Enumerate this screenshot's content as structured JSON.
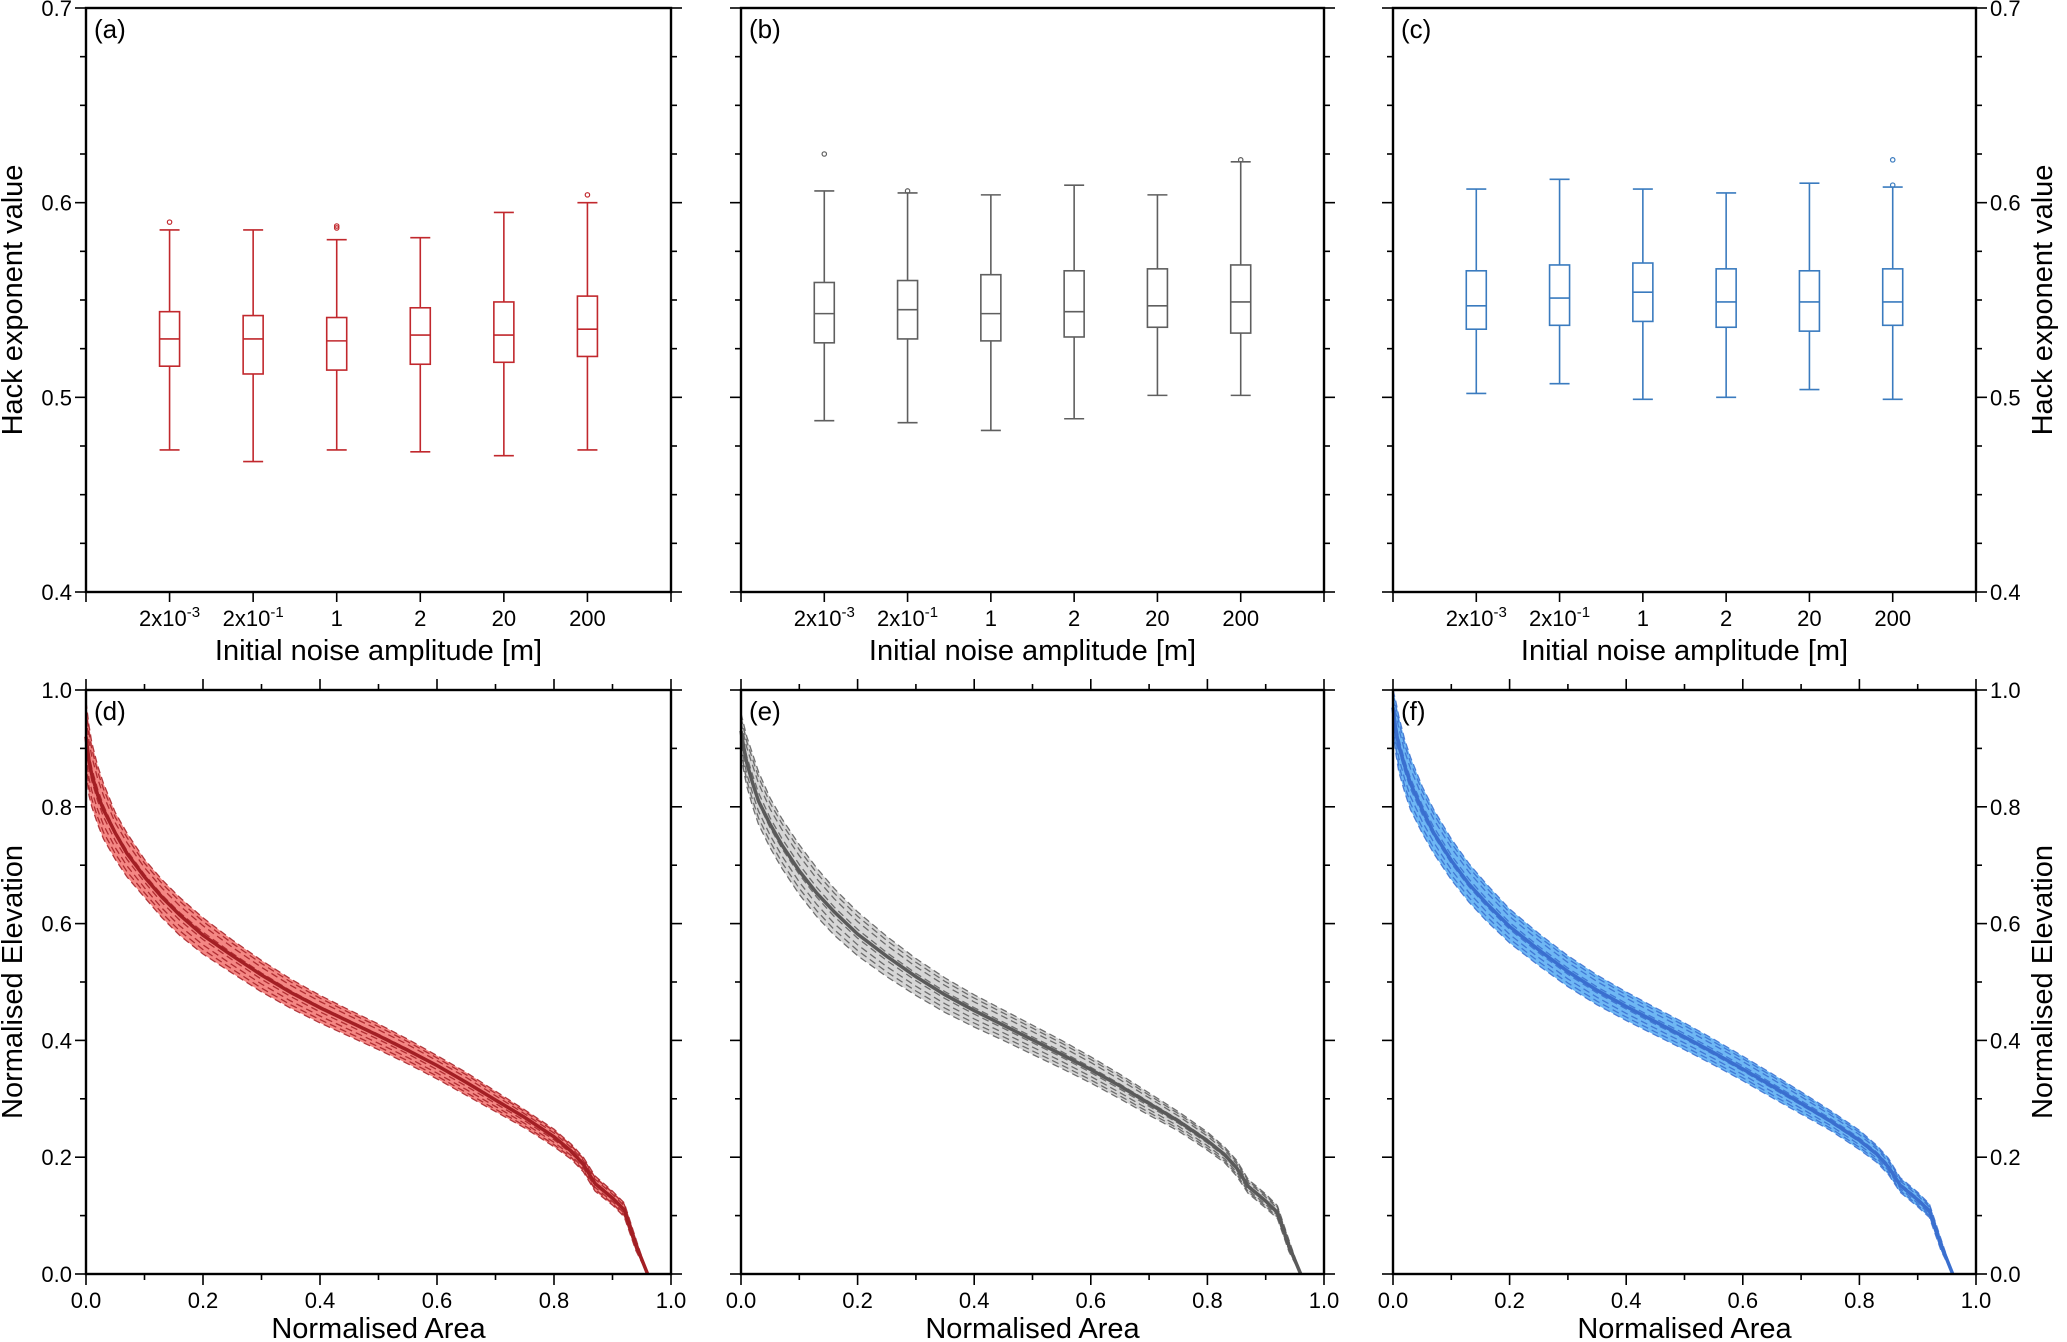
{
  "chart_data": [
    {
      "panel": "(a)",
      "type": "box",
      "color": "#c1282d",
      "xlabel": "Initial noise amplitude [m]",
      "ylabel": "Hack exponent value",
      "ylim": [
        0.4,
        0.7
      ],
      "yticks": [
        "0.4",
        "0.5",
        "0.6",
        "0.7"
      ],
      "categories": [
        {
          "base": "2x10",
          "sup": "-3"
        },
        {
          "base": "2x10",
          "sup": "-1"
        },
        {
          "base": "1",
          "sup": ""
        },
        {
          "base": "2",
          "sup": ""
        },
        {
          "base": "20",
          "sup": ""
        },
        {
          "base": "200",
          "sup": ""
        }
      ],
      "boxes": [
        {
          "whisker_low": 0.473,
          "q1": 0.516,
          "median": 0.53,
          "q3": 0.544,
          "whisker_high": 0.586,
          "outliers": [
            0.59
          ]
        },
        {
          "whisker_low": 0.467,
          "q1": 0.512,
          "median": 0.53,
          "q3": 0.542,
          "whisker_high": 0.586,
          "outliers": []
        },
        {
          "whisker_low": 0.473,
          "q1": 0.514,
          "median": 0.529,
          "q3": 0.541,
          "whisker_high": 0.581,
          "outliers": [
            0.587,
            0.588
          ]
        },
        {
          "whisker_low": 0.472,
          "q1": 0.517,
          "median": 0.532,
          "q3": 0.546,
          "whisker_high": 0.582,
          "outliers": []
        },
        {
          "whisker_low": 0.47,
          "q1": 0.518,
          "median": 0.532,
          "q3": 0.549,
          "whisker_high": 0.595,
          "outliers": []
        },
        {
          "whisker_low": 0.473,
          "q1": 0.521,
          "median": 0.535,
          "q3": 0.552,
          "whisker_high": 0.6,
          "outliers": [
            0.604
          ]
        }
      ]
    },
    {
      "panel": "(b)",
      "type": "box",
      "color": "#5f5f5f",
      "xlabel": "Initial noise amplitude [m]",
      "ylabel": "",
      "ylim": [
        0.4,
        0.7
      ],
      "categories": [
        {
          "base": "2x10",
          "sup": "-3"
        },
        {
          "base": "2x10",
          "sup": "-1"
        },
        {
          "base": "1",
          "sup": ""
        },
        {
          "base": "2",
          "sup": ""
        },
        {
          "base": "20",
          "sup": ""
        },
        {
          "base": "200",
          "sup": ""
        }
      ],
      "boxes": [
        {
          "whisker_low": 0.488,
          "q1": 0.528,
          "median": 0.543,
          "q3": 0.559,
          "whisker_high": 0.606,
          "outliers": [
            0.625
          ]
        },
        {
          "whisker_low": 0.487,
          "q1": 0.53,
          "median": 0.545,
          "q3": 0.56,
          "whisker_high": 0.605,
          "outliers": [
            0.606
          ]
        },
        {
          "whisker_low": 0.483,
          "q1": 0.529,
          "median": 0.543,
          "q3": 0.563,
          "whisker_high": 0.604,
          "outliers": []
        },
        {
          "whisker_low": 0.489,
          "q1": 0.531,
          "median": 0.544,
          "q3": 0.565,
          "whisker_high": 0.609,
          "outliers": []
        },
        {
          "whisker_low": 0.501,
          "q1": 0.536,
          "median": 0.547,
          "q3": 0.566,
          "whisker_high": 0.604,
          "outliers": []
        },
        {
          "whisker_low": 0.501,
          "q1": 0.533,
          "median": 0.549,
          "q3": 0.568,
          "whisker_high": 0.621,
          "outliers": [
            0.622
          ]
        }
      ]
    },
    {
      "panel": "(c)",
      "type": "box",
      "color": "#3a7bbf",
      "xlabel": "Initial noise amplitude [m]",
      "ylabel": "Hack exponent value",
      "ylim": [
        0.4,
        0.7
      ],
      "yticks": [
        "0.4",
        "0.5",
        "0.6",
        "0.7"
      ],
      "categories": [
        {
          "base": "2x10",
          "sup": "-3"
        },
        {
          "base": "2x10",
          "sup": "-1"
        },
        {
          "base": "1",
          "sup": ""
        },
        {
          "base": "2",
          "sup": ""
        },
        {
          "base": "20",
          "sup": ""
        },
        {
          "base": "200",
          "sup": ""
        }
      ],
      "boxes": [
        {
          "whisker_low": 0.502,
          "q1": 0.535,
          "median": 0.547,
          "q3": 0.565,
          "whisker_high": 0.607,
          "outliers": []
        },
        {
          "whisker_low": 0.507,
          "q1": 0.537,
          "median": 0.551,
          "q3": 0.568,
          "whisker_high": 0.612,
          "outliers": []
        },
        {
          "whisker_low": 0.499,
          "q1": 0.539,
          "median": 0.554,
          "q3": 0.569,
          "whisker_high": 0.607,
          "outliers": []
        },
        {
          "whisker_low": 0.5,
          "q1": 0.536,
          "median": 0.549,
          "q3": 0.566,
          "whisker_high": 0.605,
          "outliers": []
        },
        {
          "whisker_low": 0.504,
          "q1": 0.534,
          "median": 0.549,
          "q3": 0.565,
          "whisker_high": 0.61,
          "outliers": []
        },
        {
          "whisker_low": 0.499,
          "q1": 0.537,
          "median": 0.549,
          "q3": 0.566,
          "whisker_high": 0.608,
          "outliers": [
            0.609,
            0.622
          ]
        }
      ]
    },
    {
      "panel": "(d)",
      "type": "line",
      "line_color": "#a31f24",
      "fill_color": "#f2726f",
      "xlabel": "Normalised Area",
      "ylabel": "Normalised Elevation",
      "xlim": [
        0,
        1
      ],
      "ylim": [
        0,
        1
      ],
      "xticks": [
        "0.0",
        "0.2",
        "0.4",
        "0.6",
        "0.8",
        "1.0"
      ],
      "yticks": [
        "0.0",
        "0.2",
        "0.4",
        "0.6",
        "0.8",
        "1.0"
      ],
      "x": [
        0,
        0.005,
        0.01,
        0.02,
        0.03,
        0.05,
        0.07,
        0.1,
        0.13,
        0.16,
        0.2,
        0.25,
        0.3,
        0.35,
        0.4,
        0.45,
        0.5,
        0.55,
        0.6,
        0.65,
        0.7,
        0.75,
        0.8,
        0.83,
        0.85,
        0.87,
        0.9,
        0.92,
        0.94,
        0.96
      ],
      "median": [
        0.92,
        0.88,
        0.855,
        0.82,
        0.795,
        0.755,
        0.72,
        0.68,
        0.645,
        0.615,
        0.58,
        0.545,
        0.512,
        0.482,
        0.456,
        0.432,
        0.408,
        0.383,
        0.357,
        0.328,
        0.298,
        0.268,
        0.235,
        0.21,
        0.188,
        0.155,
        0.13,
        0.11,
        0.05,
        0.0
      ],
      "upper": [
        0.98,
        0.94,
        0.91,
        0.87,
        0.84,
        0.79,
        0.755,
        0.71,
        0.675,
        0.645,
        0.61,
        0.572,
        0.537,
        0.505,
        0.477,
        0.452,
        0.428,
        0.402,
        0.374,
        0.345,
        0.313,
        0.281,
        0.248,
        0.222,
        0.2,
        0.168,
        0.142,
        0.122,
        0.06,
        0.0
      ],
      "lower": [
        0.86,
        0.82,
        0.8,
        0.77,
        0.745,
        0.71,
        0.68,
        0.645,
        0.61,
        0.58,
        0.548,
        0.515,
        0.483,
        0.455,
        0.43,
        0.407,
        0.384,
        0.36,
        0.334,
        0.306,
        0.278,
        0.25,
        0.218,
        0.196,
        0.175,
        0.142,
        0.118,
        0.098,
        0.04,
        0.0
      ]
    },
    {
      "panel": "(e)",
      "type": "line",
      "line_color": "#5a5a5a",
      "fill_color": "#cfcfcf",
      "xlabel": "Normalised Area",
      "ylabel": "",
      "xlim": [
        0,
        1
      ],
      "ylim": [
        0,
        1
      ],
      "xticks": [
        "0.0",
        "0.2",
        "0.4",
        "0.6",
        "0.8",
        "1.0"
      ],
      "x": [
        0,
        0.005,
        0.01,
        0.02,
        0.03,
        0.05,
        0.07,
        0.1,
        0.13,
        0.16,
        0.2,
        0.25,
        0.3,
        0.35,
        0.4,
        0.45,
        0.5,
        0.55,
        0.6,
        0.65,
        0.7,
        0.75,
        0.8,
        0.83,
        0.85,
        0.87,
        0.9,
        0.92,
        0.94,
        0.96
      ],
      "median": [
        0.93,
        0.9,
        0.875,
        0.84,
        0.81,
        0.77,
        0.735,
        0.69,
        0.652,
        0.62,
        0.582,
        0.544,
        0.509,
        0.478,
        0.451,
        0.426,
        0.401,
        0.376,
        0.35,
        0.322,
        0.292,
        0.262,
        0.228,
        0.204,
        0.182,
        0.15,
        0.125,
        0.105,
        0.048,
        0.0
      ],
      "upper": [
        0.96,
        0.94,
        0.92,
        0.89,
        0.86,
        0.815,
        0.78,
        0.735,
        0.695,
        0.66,
        0.62,
        0.578,
        0.54,
        0.507,
        0.478,
        0.452,
        0.426,
        0.4,
        0.372,
        0.342,
        0.31,
        0.278,
        0.243,
        0.217,
        0.195,
        0.162,
        0.137,
        0.117,
        0.058,
        0.0
      ],
      "lower": [
        0.89,
        0.86,
        0.835,
        0.8,
        0.77,
        0.73,
        0.695,
        0.65,
        0.612,
        0.58,
        0.545,
        0.509,
        0.477,
        0.448,
        0.423,
        0.4,
        0.376,
        0.352,
        0.327,
        0.3,
        0.272,
        0.245,
        0.212,
        0.19,
        0.168,
        0.138,
        0.113,
        0.095,
        0.038,
        0.0
      ]
    },
    {
      "panel": "(f)",
      "type": "line",
      "line_color": "#3a6fcf",
      "fill_color": "#55aaf2",
      "xlabel": "Normalised Area",
      "ylabel": "Normalised Elevation",
      "xlim": [
        0,
        1
      ],
      "ylim": [
        0,
        1
      ],
      "xticks": [
        "0.0",
        "0.2",
        "0.4",
        "0.6",
        "0.8",
        "1.0"
      ],
      "yticks": [
        "0.0",
        "0.2",
        "0.4",
        "0.6",
        "0.8",
        "1.0"
      ],
      "x": [
        0,
        0.005,
        0.01,
        0.02,
        0.03,
        0.05,
        0.07,
        0.1,
        0.13,
        0.16,
        0.2,
        0.25,
        0.3,
        0.35,
        0.4,
        0.45,
        0.5,
        0.55,
        0.6,
        0.65,
        0.7,
        0.75,
        0.8,
        0.83,
        0.85,
        0.87,
        0.9,
        0.92,
        0.94,
        0.96
      ],
      "median": [
        0.97,
        0.93,
        0.905,
        0.87,
        0.84,
        0.795,
        0.755,
        0.708,
        0.668,
        0.635,
        0.595,
        0.555,
        0.518,
        0.486,
        0.458,
        0.432,
        0.406,
        0.379,
        0.351,
        0.322,
        0.292,
        0.262,
        0.229,
        0.205,
        0.183,
        0.152,
        0.127,
        0.108,
        0.05,
        0.0
      ],
      "upper": [
        1.0,
        0.98,
        0.955,
        0.915,
        0.885,
        0.835,
        0.795,
        0.745,
        0.703,
        0.668,
        0.625,
        0.583,
        0.545,
        0.512,
        0.483,
        0.456,
        0.43,
        0.402,
        0.373,
        0.343,
        0.312,
        0.28,
        0.246,
        0.22,
        0.198,
        0.165,
        0.14,
        0.12,
        0.06,
        0.0
      ],
      "lower": [
        0.93,
        0.89,
        0.86,
        0.825,
        0.795,
        0.755,
        0.72,
        0.675,
        0.637,
        0.605,
        0.567,
        0.528,
        0.492,
        0.461,
        0.434,
        0.409,
        0.384,
        0.358,
        0.331,
        0.302,
        0.274,
        0.246,
        0.213,
        0.191,
        0.17,
        0.14,
        0.115,
        0.097,
        0.04,
        0.0
      ]
    }
  ]
}
